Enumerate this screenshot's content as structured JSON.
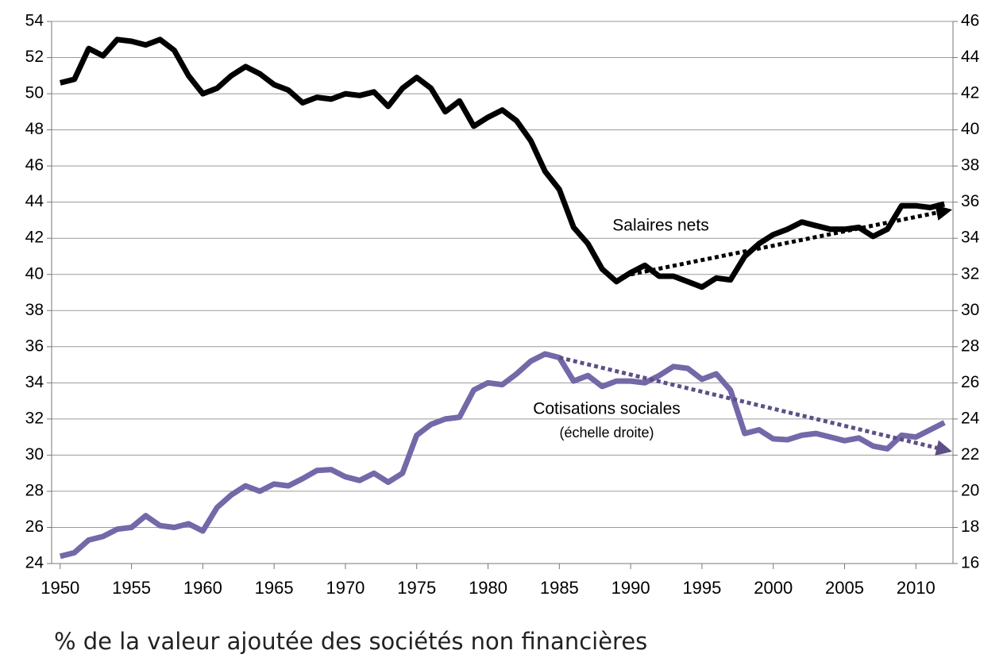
{
  "chart_data": {
    "type": "line",
    "x": [
      1950,
      1951,
      1952,
      1953,
      1954,
      1955,
      1956,
      1957,
      1958,
      1959,
      1960,
      1961,
      1962,
      1963,
      1964,
      1965,
      1966,
      1967,
      1968,
      1969,
      1970,
      1971,
      1972,
      1973,
      1974,
      1975,
      1976,
      1977,
      1978,
      1979,
      1980,
      1981,
      1982,
      1983,
      1984,
      1985,
      1986,
      1987,
      1988,
      1989,
      1990,
      1991,
      1992,
      1993,
      1994,
      1995,
      1996,
      1997,
      1998,
      1999,
      2000,
      2001,
      2002,
      2003,
      2004,
      2005,
      2006,
      2007,
      2008,
      2009,
      2010,
      2011,
      2012
    ],
    "series": [
      {
        "name": "Salaires nets",
        "color": "#000000",
        "axis": "y",
        "values": [
          50.6,
          50.8,
          52.5,
          52.1,
          53.0,
          52.9,
          52.7,
          53.0,
          52.4,
          51.0,
          50.0,
          50.3,
          51.0,
          51.5,
          51.1,
          50.5,
          50.2,
          49.5,
          49.8,
          49.7,
          50.0,
          49.9,
          50.1,
          49.3,
          50.3,
          50.9,
          50.3,
          49.0,
          49.6,
          48.2,
          48.7,
          49.1,
          48.5,
          47.4,
          45.7,
          44.7,
          42.6,
          41.7,
          40.3,
          39.6,
          40.1,
          40.5,
          39.9,
          39.9,
          39.6,
          39.3,
          39.8,
          39.7,
          41.0,
          41.7,
          42.2,
          42.5,
          42.9,
          42.7,
          42.5,
          42.5,
          42.6,
          42.1,
          42.5,
          43.8,
          43.8,
          43.7,
          43.9
        ]
      },
      {
        "name": "Cotisations sociales",
        "color": "#7468a8",
        "axis": "y2",
        "values": [
          16.4,
          16.6,
          17.3,
          17.5,
          17.9,
          18.0,
          18.65,
          18.1,
          18.0,
          18.2,
          17.8,
          19.1,
          19.8,
          20.3,
          20.0,
          20.4,
          20.3,
          20.7,
          21.15,
          21.2,
          20.8,
          20.6,
          21.0,
          20.5,
          21.0,
          23.1,
          23.7,
          24.0,
          24.1,
          25.6,
          26.0,
          25.9,
          26.5,
          27.2,
          27.6,
          27.4,
          26.1,
          26.4,
          25.8,
          26.1,
          26.1,
          26.0,
          26.4,
          26.9,
          26.8,
          26.2,
          26.5,
          25.6,
          23.2,
          23.4,
          22.9,
          22.85,
          23.1,
          23.2,
          23.0,
          22.8,
          22.95,
          22.5,
          22.35,
          23.1,
          23.0,
          23.4,
          23.8
        ]
      }
    ],
    "trends": [
      {
        "color": "#000000",
        "axis": "y",
        "x": [
          1990,
          2012
        ],
        "values": [
          40.0,
          43.5
        ]
      },
      {
        "color": "#5e4f86",
        "axis": "y2",
        "x": [
          1985,
          2012
        ],
        "values": [
          27.4,
          22.3
        ]
      }
    ],
    "annotations": [
      "Salaires nets",
      "Cotisations sociales",
      "(échelle droite)"
    ],
    "footnote": "% de la valeur ajoutée des sociétés non financières",
    "xlim": [
      1949.4,
      2012.6
    ],
    "xticks": [
      1950,
      1955,
      1960,
      1965,
      1970,
      1975,
      1980,
      1985,
      1990,
      1995,
      2000,
      2005,
      2010
    ],
    "ylim": [
      24,
      54
    ],
    "yticks": [
      24,
      26,
      28,
      30,
      32,
      34,
      36,
      38,
      40,
      42,
      44,
      46,
      48,
      50,
      52,
      54
    ],
    "y2lim": [
      16,
      46
    ],
    "y2ticks": [
      16,
      18,
      20,
      22,
      24,
      26,
      28,
      30,
      32,
      34,
      36,
      38,
      40,
      42,
      44,
      46
    ],
    "grid": true
  }
}
